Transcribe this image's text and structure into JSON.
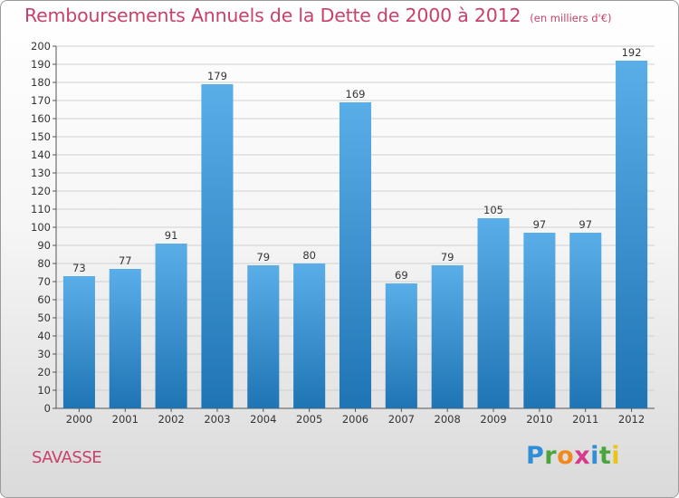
{
  "header": {
    "title": "Remboursements Annuels de la Dette de 2000 à 2012",
    "unit": "(en milliers d'€)"
  },
  "footer": {
    "place": "SAVASSE",
    "logo": "Proxiti"
  },
  "chart_data": {
    "type": "bar",
    "title": "Remboursements Annuels de la Dette de 2000 à 2012",
    "subtitle": "(en milliers d'€)",
    "xlabel": "",
    "ylabel": "",
    "categories": [
      "2000",
      "2001",
      "2002",
      "2003",
      "2004",
      "2005",
      "2006",
      "2007",
      "2008",
      "2009",
      "2010",
      "2011",
      "2012"
    ],
    "values": [
      73,
      77,
      91,
      179,
      79,
      80,
      169,
      69,
      79,
      105,
      97,
      97,
      192
    ],
    "ylim": [
      0,
      200
    ],
    "yticks": [
      0,
      10,
      20,
      30,
      40,
      50,
      60,
      70,
      80,
      90,
      100,
      110,
      120,
      130,
      140,
      150,
      160,
      170,
      180,
      190,
      200
    ],
    "grid": true,
    "data_labels": true,
    "colors": {
      "bar_top": "#5aaee8",
      "bar_bottom": "#1f74b4",
      "grid": "#d0d0d0",
      "text": "#333333"
    }
  }
}
